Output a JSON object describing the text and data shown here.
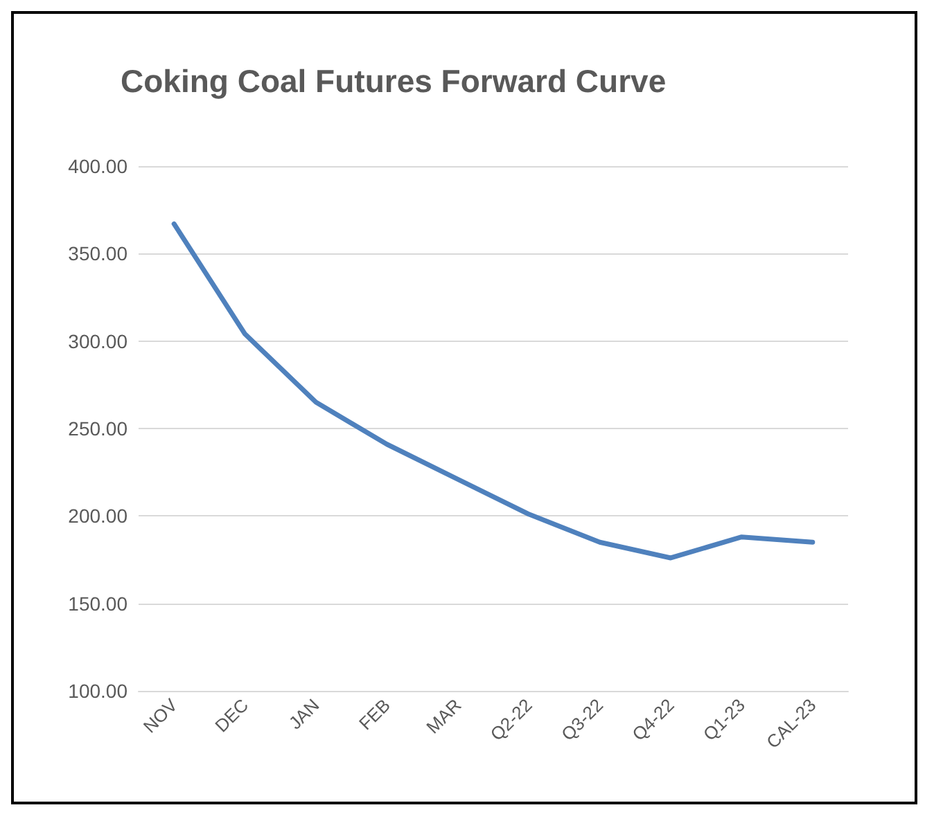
{
  "chart_data": {
    "type": "line",
    "title": "Coking Coal Futures Forward Curve",
    "categories": [
      "NOV",
      "DEC",
      "JAN",
      "FEB",
      "MAR",
      "Q2-22",
      "Q3-22",
      "Q4-22",
      "Q1-23",
      "CAL-23"
    ],
    "series": [
      {
        "color": "#4f81bd",
        "values": [
          367,
          304,
          265,
          241,
          221,
          201,
          185,
          176,
          188,
          185
        ]
      }
    ],
    "ylim": [
      100,
      400
    ],
    "yticks": [
      {
        "value": 100,
        "label": "100.00"
      },
      {
        "value": 150,
        "label": "150.00"
      },
      {
        "value": 200,
        "label": "200.00"
      },
      {
        "value": 250,
        "label": "250.00"
      },
      {
        "value": 300,
        "label": "300.00"
      },
      {
        "value": 350,
        "label": "350.00"
      },
      {
        "value": 400,
        "label": "400.00"
      }
    ],
    "grid": "y",
    "marker": "none",
    "line_style": "solid"
  }
}
